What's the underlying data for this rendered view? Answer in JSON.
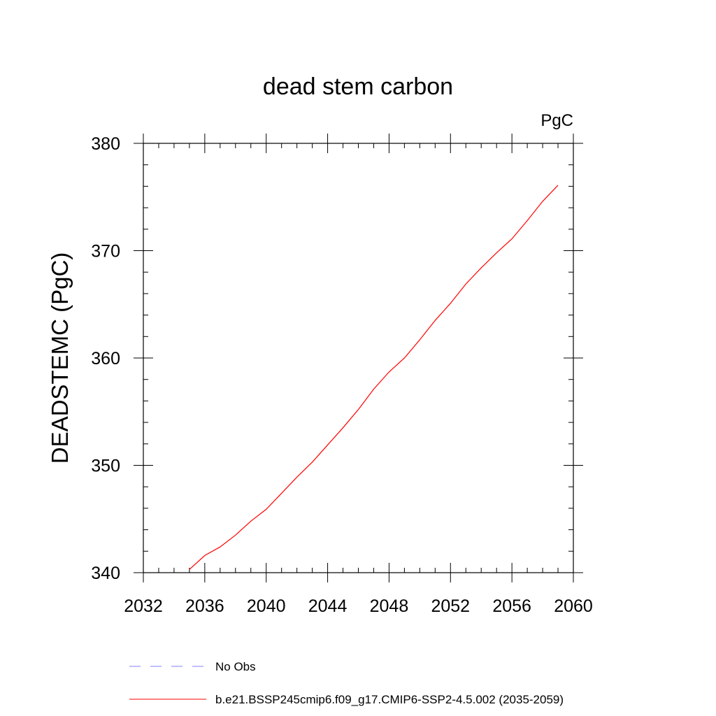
{
  "chart_data": {
    "type": "line",
    "title": "dead stem carbon",
    "units_label": "PgC",
    "ylabel": "DEADSTEMC  (PgC)",
    "xlabel": "",
    "xlim": [
      2032,
      2060
    ],
    "ylim": [
      340,
      380
    ],
    "x_ticks": [
      2032,
      2036,
      2040,
      2044,
      2048,
      2052,
      2056,
      2060
    ],
    "x_tick_labels": [
      "2032",
      "2036",
      "2040",
      "2044",
      "2048",
      "2052",
      "2056",
      "2060"
    ],
    "y_ticks": [
      340,
      350,
      360,
      370,
      380
    ],
    "y_tick_labels": [
      "340",
      "350",
      "360",
      "370",
      "380"
    ],
    "x_minor_step": 1,
    "y_minor_step": 2,
    "grid": false,
    "legend_placement": "bottom",
    "series": [
      {
        "name": "b.e21.BSSP245cmip6.f09_g17.CMIP6-SSP2-4.5.002 (2035-2059)",
        "color": "#ff0000",
        "dash": "solid",
        "x": [
          2035,
          2036,
          2037,
          2038,
          2039,
          2040,
          2041,
          2042,
          2043,
          2044,
          2045,
          2046,
          2047,
          2048,
          2049,
          2050,
          2051,
          2052,
          2053,
          2054,
          2055,
          2056,
          2057,
          2058,
          2059
        ],
        "values": [
          340.3,
          341.6,
          342.4,
          343.5,
          344.8,
          345.9,
          347.4,
          348.9,
          350.3,
          351.9,
          353.5,
          355.2,
          357.1,
          358.7,
          360.0,
          361.7,
          363.5,
          365.1,
          366.9,
          368.4,
          369.8,
          371.1,
          372.8,
          374.6,
          376.1
        ]
      }
    ],
    "legend_entries": [
      {
        "label": "No Obs",
        "color": "#8080ff",
        "dash": "dashed"
      },
      {
        "label": "b.e21.BSSP245cmip6.f09_g17.CMIP6-SSP2-4.5.002 (2035-2059)",
        "color": "#ff0000",
        "dash": "solid"
      }
    ]
  }
}
